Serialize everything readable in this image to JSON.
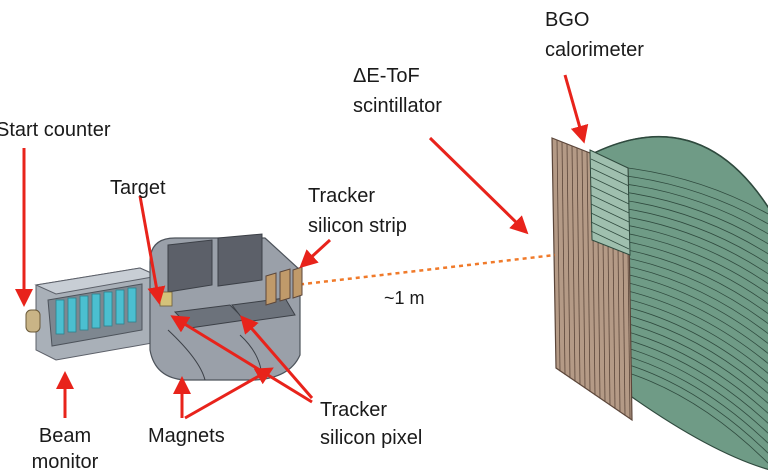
{
  "labels": {
    "bgo_line1": "BGO",
    "bgo_line2": "calorimeter",
    "tof_line1": "ΔE-ToF",
    "tof_line2": "scintillator",
    "start_counter": "Start counter",
    "target": "Target",
    "tracker_strip_line1": "Tracker",
    "tracker_strip_line2": "silicon strip",
    "distance": "~1 m",
    "beam_monitor_line1": "Beam",
    "beam_monitor_line2": "monitor",
    "magnets": "Magnets",
    "tracker_pixel_line1": "Tracker",
    "tracker_pixel_line2": "silicon pixel"
  },
  "colors": {
    "arrow": "#e8231b",
    "beam_line": "#f07a2a",
    "bgo": "#6f9b86",
    "bgo_edge": "#2f4a3e",
    "scintillator": "#b49a86",
    "scint_edge": "#5b463a",
    "magnet": "#8c929c",
    "magnet_dark": "#5c6069",
    "beam_monitor": "#a9b0b8",
    "beam_monitor_inner": "#4bbfd0"
  }
}
